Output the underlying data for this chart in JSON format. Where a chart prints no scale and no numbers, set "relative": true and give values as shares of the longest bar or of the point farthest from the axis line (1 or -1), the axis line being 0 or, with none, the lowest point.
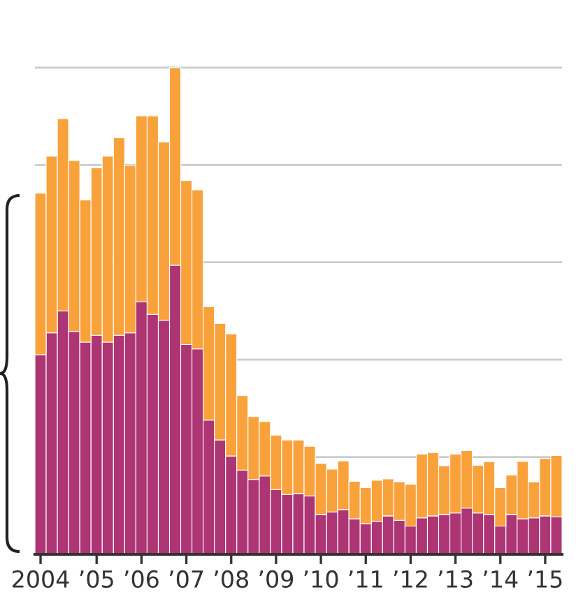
{
  "chart_data": {
    "type": "bar",
    "stacked": true,
    "relative": true,
    "grid": "y",
    "legend": false,
    "categories": [
      "2004",
      null,
      null,
      null,
      null,
      "’05",
      null,
      null,
      null,
      "’06",
      null,
      null,
      null,
      "’07",
      null,
      null,
      null,
      "’08",
      null,
      null,
      null,
      "’09",
      null,
      null,
      null,
      "’10",
      null,
      null,
      null,
      "’11",
      null,
      null,
      null,
      "’12",
      null,
      null,
      null,
      "’13",
      null,
      null,
      null,
      "’14",
      null,
      null,
      null,
      "’15",
      null
    ],
    "series": [
      {
        "color": "#ad3574",
        "values": [
          0.41,
          0.455,
          0.5,
          0.458,
          0.436,
          0.45,
          0.436,
          0.45,
          0.455,
          0.519,
          0.493,
          0.481,
          0.594,
          0.431,
          0.422,
          0.276,
          0.235,
          0.202,
          0.173,
          0.154,
          0.161,
          0.133,
          0.123,
          0.125,
          0.12,
          0.082,
          0.087,
          0.092,
          0.073,
          0.063,
          0.068,
          0.079,
          0.07,
          0.058,
          0.075,
          0.079,
          0.082,
          0.085,
          0.095,
          0.085,
          0.082,
          0.058,
          0.082,
          0.073,
          0.075,
          0.079,
          0.077
        ]
      },
      {
        "color": "#f9a23c",
        "values": [
          0.332,
          0.363,
          0.395,
          0.351,
          0.292,
          0.344,
          0.382,
          0.406,
          0.344,
          0.382,
          0.408,
          0.366,
          0.406,
          0.337,
          0.327,
          0.233,
          0.239,
          0.251,
          0.153,
          0.129,
          0.112,
          0.112,
          0.112,
          0.11,
          0.102,
          0.105,
          0.088,
          0.1,
          0.077,
          0.074,
          0.084,
          0.076,
          0.079,
          0.086,
          0.131,
          0.13,
          0.1,
          0.121,
          0.118,
          0.098,
          0.108,
          0.079,
          0.081,
          0.118,
          0.074,
          0.118,
          0.126
        ]
      }
    ]
  }
}
